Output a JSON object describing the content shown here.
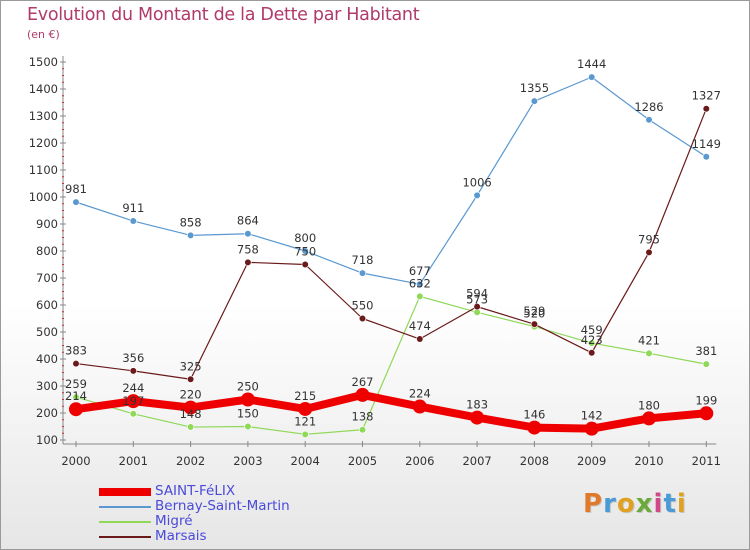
{
  "title": "Evolution du Montant de la Dette par Habitant",
  "unit_label": "(en €)",
  "logo_text": "Proxiti",
  "logo_letters": [
    {
      "ch": "P",
      "color": "#e07a2a"
    },
    {
      "ch": "r",
      "color": "#4a9ad6"
    },
    {
      "ch": "o",
      "color": "#e0a020"
    },
    {
      "ch": "x",
      "color": "#6aaa3a"
    },
    {
      "ch": "i",
      "color": "#d04a8a"
    },
    {
      "ch": "t",
      "color": "#4a9ad6"
    },
    {
      "ch": "i",
      "color": "#e0a020"
    }
  ],
  "colors": {
    "title": "#b03a6a",
    "axis_text": "#333333",
    "legend_text": "#4a4adb",
    "axis_line": "#888888"
  },
  "chart_data": {
    "type": "line",
    "title": "Evolution du Montant de la Dette par Habitant",
    "ylabel": "(en €)",
    "xlabel": "",
    "ylim": [
      100,
      1500
    ],
    "yticks": [
      100,
      200,
      300,
      400,
      500,
      600,
      700,
      800,
      900,
      1000,
      1100,
      1200,
      1300,
      1400,
      1500
    ],
    "x": [
      "2000",
      "2001",
      "2002",
      "2003",
      "2004",
      "2005",
      "2006",
      "2007",
      "2008",
      "2009",
      "2010",
      "2011"
    ],
    "grid": false,
    "legend_position": "bottom-left",
    "series": [
      {
        "name": "SAINT-FéLIX",
        "color": "#ee0000",
        "width": 8,
        "marker": true,
        "values": [
          214,
          244,
          220,
          250,
          215,
          267,
          224,
          183,
          146,
          142,
          180,
          199
        ]
      },
      {
        "name": "Bernay-Saint-Martin",
        "color": "#5a98d0",
        "width": 1.2,
        "marker": true,
        "values": [
          981,
          911,
          858,
          864,
          800,
          718,
          677,
          1006,
          1355,
          1444,
          1286,
          1149
        ]
      },
      {
        "name": "Migré",
        "color": "#8fd858",
        "width": 1.2,
        "marker": true,
        "values": [
          259,
          197,
          148,
          150,
          121,
          138,
          632,
          573,
          520,
          459,
          421,
          381
        ]
      },
      {
        "name": "Marsais",
        "color": "#6a1a1a",
        "width": 1.2,
        "marker": true,
        "values": [
          383,
          356,
          325,
          758,
          750,
          550,
          474,
          594,
          529,
          423,
          795,
          1327
        ]
      }
    ]
  }
}
